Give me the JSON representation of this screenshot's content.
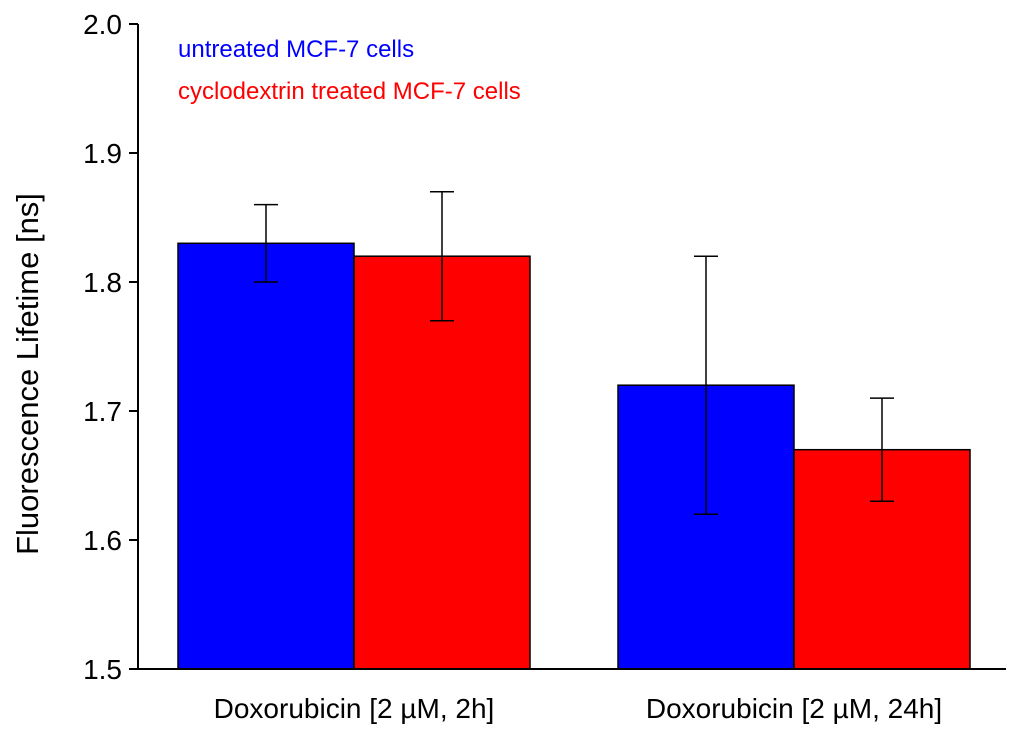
{
  "chart_data": {
    "type": "bar",
    "title": "",
    "xlabel": "",
    "ylabel": "Fluorescence Lifetime [ns]",
    "ylim": [
      1.5,
      2.0
    ],
    "yticks": [
      "1.5",
      "1.6",
      "1.7",
      "1.8",
      "1.9",
      "2.0"
    ],
    "grid": false,
    "legend_position": "top-left",
    "categories": [
      "Doxorubicin [2 µM, 2h]",
      "Doxorubicin [2 µM, 24h]"
    ],
    "series": [
      {
        "name": "untreated MCF-7 cells",
        "color": "#0000ff",
        "values": [
          1.83,
          1.72
        ],
        "errors": [
          0.03,
          0.1
        ]
      },
      {
        "name": "cyclodextrin treated MCF-7 cells",
        "color": "#ff0000",
        "values": [
          1.82,
          1.67
        ],
        "errors": [
          0.05,
          0.04
        ]
      }
    ]
  }
}
